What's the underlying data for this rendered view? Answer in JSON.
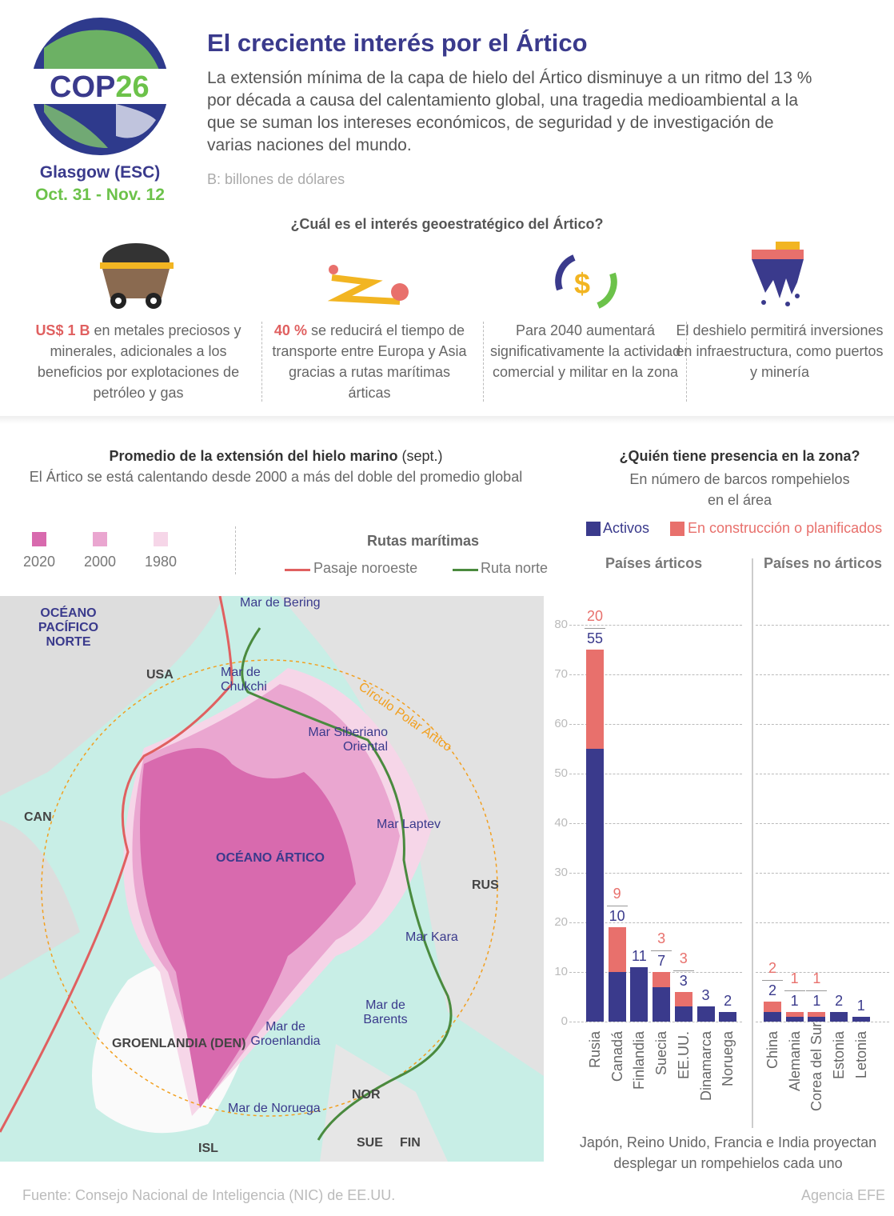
{
  "header": {
    "title": "El creciente interés por el Ártico",
    "intro": "La extensión mínima de la capa de hielo del Ártico disminuye a un ritmo del 13 % por década a causa del calentamiento global, una tragedia medioambiental a la que se suman los intereses económicos, de seguridad y de investigación de varias naciones del mundo.",
    "note": "B: billones de dólares"
  },
  "logo": {
    "cop": "COP",
    "num": "26",
    "city": "Glasgow (ESC)",
    "dates": "Oct. 31 - Nov. 12"
  },
  "question": "¿Cuál es el interés geoestratégico del Ártico?",
  "features": [
    {
      "icon": "coal-cart-icon",
      "hl": "US$ 1 B",
      "text": " en metales preciosos y minerales, adicionales a los beneficios por explotaciones de petróleo y gas"
    },
    {
      "icon": "route-icon",
      "hl": "40 %",
      "text": " se reducirá el tiempo de transporte entre Europa y Asia gracias a rutas marítimas árticas"
    },
    {
      "icon": "dollar-cycle-icon",
      "hl": "",
      "text": "Para 2040 aumentará significativamente la actividad comercial y militar en la zona"
    },
    {
      "icon": "melting-ice-ship-icon",
      "hl": "",
      "text": "El deshielo permitirá inversiones en infraestructura, como puertos y minería"
    }
  ],
  "map": {
    "title": "Promedio de la extensión del hielo marino",
    "title_suffix": " (sept.)",
    "subtitle": "El Ártico se está calentando desde 2000 a más del doble del promedio global",
    "legend": [
      {
        "label": "2020",
        "color": "#d86aae"
      },
      {
        "label": "2000",
        "color": "#eaa6d0"
      },
      {
        "label": "1980",
        "color": "#f6d6e8"
      }
    ],
    "routes_title": "Rutas marítimas",
    "routes": [
      {
        "label": "Pasaje noroeste",
        "color": "#e06060"
      },
      {
        "label": "Ruta norte",
        "color": "#4a8a3e"
      }
    ],
    "labels": {
      "pacific": "OCÉANO PACÍFICO NORTE",
      "bering": "Mar de Bering",
      "usa": "USA",
      "chukchi": "Mar de Chukchi",
      "circle": "Círculo Polar Ártico",
      "siberian": "Mar Siberiano Oriental",
      "laptev": "Mar Laptev",
      "can": "CAN",
      "arctic": "OCÉANO ÁRTICO",
      "rus": "RUS",
      "kara": "Mar Kara",
      "barents": "Mar de Barents",
      "greenland_sea": "Mar de Groenlandia",
      "greenland": "GROENLANDIA (DEN)",
      "norway_sea": "Mar de Noruega",
      "nor": "NOR",
      "isl": "ISL",
      "sue": "SUE",
      "fin": "FIN"
    }
  },
  "presence": {
    "title": "¿Quién tiene presencia en la zona?",
    "subtitle": "En número de barcos rompehielos en el área",
    "footnote": "Japón, Reino Unido, Francia e India proyectan desplegar un rompehielos cada uno"
  },
  "chart_data": {
    "type": "bar",
    "stacked": true,
    "title": "¿Quién tiene presencia en la zona?",
    "ylim": [
      0,
      80
    ],
    "yticks": [
      0,
      10,
      20,
      30,
      40,
      50,
      60,
      70,
      80
    ],
    "legend": [
      {
        "name": "Activos",
        "color": "#3a3a8c"
      },
      {
        "name": "En construcción o planificados",
        "color": "#e8706c"
      }
    ],
    "groups": [
      {
        "name": "Países árticos",
        "categories": [
          "Rusia",
          "Canadá",
          "Finlandia",
          "Suecia",
          "EE.UU.",
          "Dinamarca",
          "Noruega"
        ],
        "activos": [
          55,
          10,
          11,
          7,
          3,
          3,
          2
        ],
        "planificados": [
          20,
          9,
          0,
          3,
          3,
          0,
          0
        ]
      },
      {
        "name": "Países no árticos",
        "categories": [
          "China",
          "Alemania",
          "Corea del Sur",
          "Estonia",
          "Letonia"
        ],
        "activos": [
          2,
          1,
          1,
          2,
          1
        ],
        "planificados": [
          2,
          1,
          1,
          0,
          0
        ]
      }
    ]
  },
  "footer": {
    "source": "Fuente: Consejo Nacional de Inteligencia (NIC) de EE.UU.",
    "agency": "Agencia EFE"
  }
}
